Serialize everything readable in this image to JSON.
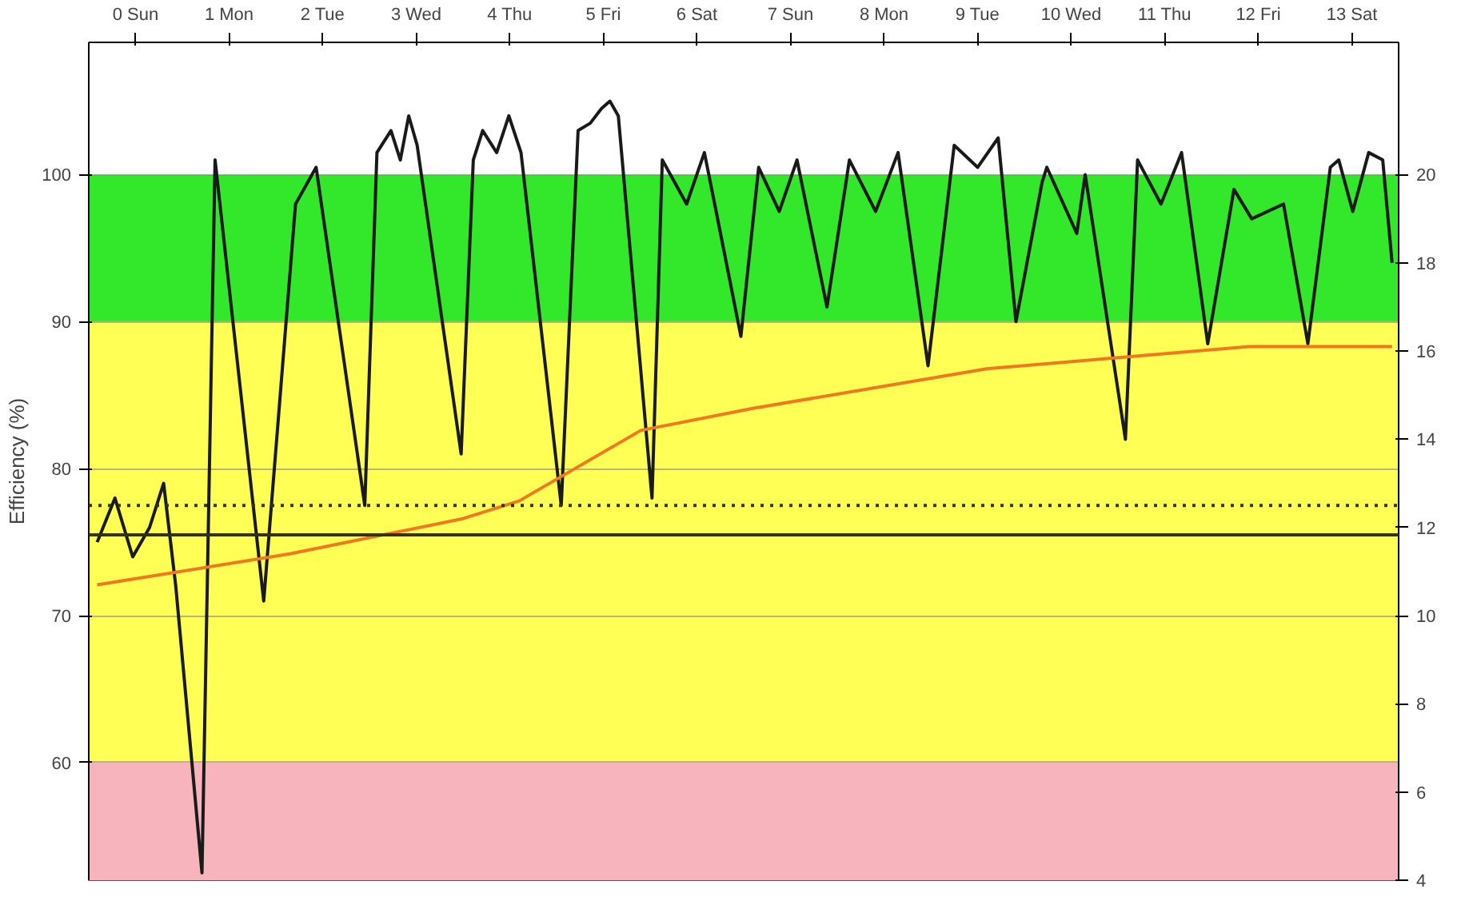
{
  "chart_data": {
    "type": "line",
    "ylabel": "Efficiency (%)",
    "xlim": [
      0,
      14
    ],
    "xticks": [
      {
        "value": 0.5,
        "label": "0 Sun"
      },
      {
        "value": 1.5,
        "label": "1 Mon"
      },
      {
        "value": 2.5,
        "label": "2 Tue"
      },
      {
        "value": 3.5,
        "label": "3 Wed"
      },
      {
        "value": 4.5,
        "label": "4 Thu"
      },
      {
        "value": 5.5,
        "label": "5 Fri"
      },
      {
        "value": 6.5,
        "label": "6 Sat"
      },
      {
        "value": 7.5,
        "label": "7 Sun"
      },
      {
        "value": 8.5,
        "label": "8 Mon"
      },
      {
        "value": 9.5,
        "label": "9 Tue"
      },
      {
        "value": 10.5,
        "label": "10 Wed"
      },
      {
        "value": 11.5,
        "label": "11 Thu"
      },
      {
        "value": 12.5,
        "label": "12 Fri"
      },
      {
        "value": 13.5,
        "label": "13 Sat"
      }
    ],
    "ylim": [
      52,
      109
    ],
    "yticks": [
      60,
      70,
      80,
      90,
      100
    ],
    "y2lim": [
      4,
      23
    ],
    "y2ticks": [
      4,
      6,
      8,
      10,
      12,
      14,
      16,
      18,
      20
    ],
    "series": [
      {
        "color": "#1a1a1a",
        "x": [
          0.09,
          0.28,
          0.47,
          0.65,
          0.8,
          0.93,
          1.21,
          1.35,
          1.87,
          2.21,
          2.43,
          2.95,
          3.08,
          3.23,
          3.33,
          3.42,
          3.51,
          3.98,
          4.11,
          4.21,
          4.36,
          4.49,
          4.62,
          5.05,
          5.23,
          5.36,
          5.48,
          5.57,
          5.66,
          6.02,
          6.13,
          6.39,
          6.58,
          6.69,
          6.97,
          7.16,
          7.38,
          7.57,
          7.89,
          8.13,
          8.41,
          8.65,
          8.97,
          9.25,
          9.5,
          9.72,
          9.91,
          10.19,
          10.24,
          10.56,
          10.65,
          11.08,
          11.21,
          11.46,
          11.68,
          11.96,
          12.24,
          12.43,
          12.77,
          13.03,
          13.27,
          13.36,
          13.51,
          13.68,
          13.83,
          13.93
        ],
        "values": [
          75,
          78,
          74,
          76,
          79,
          72,
          52.5,
          101,
          71,
          98,
          100.5,
          77.5,
          101.5,
          103,
          101,
          104,
          102,
          81,
          101,
          103,
          101.5,
          104,
          101.5,
          77.5,
          103,
          103.5,
          104.5,
          105,
          104,
          78,
          101,
          98,
          101.5,
          98,
          89,
          100.5,
          97.5,
          101,
          91,
          101,
          97.5,
          101.5,
          87,
          102,
          100.5,
          102.5,
          90,
          99.5,
          100.5,
          96,
          100,
          82,
          101,
          98,
          101.5,
          88.5,
          99,
          97,
          98,
          88.5,
          100.5,
          101,
          97.5,
          101.5,
          101,
          94
        ]
      },
      {
        "color": "#f07820",
        "axis": "y2",
        "x": [
          0.09,
          2.15,
          4.0,
          4.6,
          5.9,
          7.1,
          9.6,
          12.4,
          13.93
        ],
        "values": [
          10.7,
          11.4,
          12.2,
          12.6,
          14.2,
          14.7,
          15.6,
          16.1,
          16.1
        ]
      }
    ],
    "bands": [
      {
        "axis": "y",
        "from": 52,
        "to": 60,
        "color": "#f8b4bc"
      },
      {
        "axis": "y",
        "from": 60,
        "to": 90,
        "color": "#ffff55"
      },
      {
        "axis": "y",
        "from": 90,
        "to": 100,
        "color": "#33e82a"
      }
    ],
    "ref_lines": [
      {
        "axis": "y",
        "value": 77.5,
        "color": "#333300",
        "line_style": "dotted"
      },
      {
        "axis": "y",
        "value": 75.5,
        "color": "#333300",
        "line_style": "solid"
      }
    ],
    "grid": "y",
    "marker": "none",
    "line_style": "solid"
  }
}
